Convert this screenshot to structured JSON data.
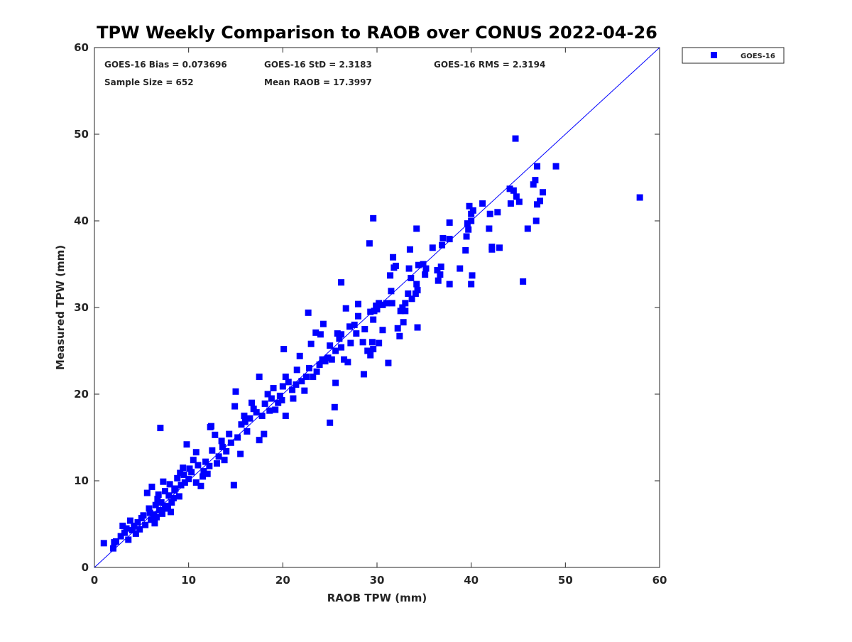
{
  "chart_data": {
    "type": "scatter",
    "title": "TPW Weekly Comparison to RAOB over CONUS 2022-04-26",
    "xlabel": "RAOB TPW (mm)",
    "ylabel": "Measured TPW (mm)",
    "xlim": [
      0,
      60
    ],
    "ylim": [
      0,
      60
    ],
    "xticks": [
      "0",
      "10",
      "20",
      "30",
      "40",
      "50",
      "60"
    ],
    "yticks": [
      "0",
      "10",
      "20",
      "30",
      "40",
      "50",
      "60"
    ],
    "grid": false,
    "legend_position": "outside-top-right",
    "stats": {
      "bias": "GOES-16 Bias = 0.073696",
      "std": "GOES-16 StD = 2.3183",
      "rms": "GOES-16 RMS = 2.3194",
      "sample": "Sample Size = 652",
      "mean": "Mean RAOB = 17.3997"
    },
    "reference_line": {
      "name": "1:1 line",
      "x": [
        0,
        60
      ],
      "y": [
        0,
        60
      ],
      "color": "#0000ff"
    },
    "series": [
      {
        "name": "GOES-16",
        "color": "#0000ff",
        "marker": "square",
        "points": [
          [
            47,
            46.3
          ],
          [
            46.8,
            44.7
          ],
          [
            46.6,
            44.2
          ],
          [
            44.7,
            49.5
          ],
          [
            49,
            46.3
          ],
          [
            47.6,
            43.3
          ],
          [
            47.3,
            42.3
          ],
          [
            47,
            41.9
          ],
          [
            46.9,
            40
          ],
          [
            46,
            39.1
          ],
          [
            45.5,
            33
          ],
          [
            44.1,
            43.7
          ],
          [
            44.5,
            43.5
          ],
          [
            44.8,
            42.8
          ],
          [
            45.1,
            42.2
          ],
          [
            44.2,
            42
          ],
          [
            43,
            36.9
          ],
          [
            42.8,
            41
          ],
          [
            42,
            40.8
          ],
          [
            42.2,
            37
          ],
          [
            41.9,
            39.1
          ],
          [
            42.2,
            36.7
          ],
          [
            41.2,
            42
          ],
          [
            40.2,
            41.2
          ],
          [
            40,
            40.8
          ],
          [
            39.8,
            41.7
          ],
          [
            40,
            40
          ],
          [
            39.6,
            39.7
          ],
          [
            39.7,
            39
          ],
          [
            39.5,
            38.2
          ],
          [
            39.4,
            36.6
          ],
          [
            40.1,
            33.7
          ],
          [
            40,
            32.7
          ],
          [
            38.8,
            34.5
          ],
          [
            37.7,
            39.8
          ],
          [
            37.7,
            37.9
          ],
          [
            37.7,
            32.7
          ],
          [
            37,
            38
          ],
          [
            36.9,
            37.2
          ],
          [
            36.8,
            34.7
          ],
          [
            36.7,
            33.8
          ],
          [
            36.5,
            33.1
          ],
          [
            36.4,
            34.3
          ],
          [
            35.9,
            36.9
          ],
          [
            34.2,
            39.1
          ],
          [
            33.5,
            36.7
          ],
          [
            33.4,
            34.5
          ],
          [
            33.6,
            33.4
          ],
          [
            34.4,
            34.9
          ],
          [
            35.2,
            34.5
          ],
          [
            35.1,
            33.8
          ],
          [
            34.9,
            35
          ],
          [
            34.2,
            32.7
          ],
          [
            34.3,
            32
          ],
          [
            34.1,
            31.6
          ],
          [
            33.7,
            31
          ],
          [
            33.3,
            31.6
          ],
          [
            33,
            30.5
          ],
          [
            32.7,
            30
          ],
          [
            32.5,
            29.6
          ],
          [
            33,
            29.6
          ],
          [
            32.8,
            28.3
          ],
          [
            32.4,
            26.7
          ],
          [
            32.2,
            27.6
          ],
          [
            34.3,
            27.7
          ],
          [
            31.7,
            35.8
          ],
          [
            31.8,
            34.6
          ],
          [
            32,
            34.8
          ],
          [
            31.4,
            33.7
          ],
          [
            31.5,
            31.9
          ],
          [
            31.6,
            30.5
          ],
          [
            31,
            30.5
          ],
          [
            30.6,
            30.3
          ],
          [
            30.2,
            30.5
          ],
          [
            30,
            29.8
          ],
          [
            29.9,
            30.2
          ],
          [
            29.7,
            29.6
          ],
          [
            29.6,
            28.6
          ],
          [
            29.6,
            25.2
          ],
          [
            29.5,
            26
          ],
          [
            29.3,
            24.5
          ],
          [
            29,
            25
          ],
          [
            28.7,
            27.5
          ],
          [
            28.5,
            26
          ],
          [
            28,
            30.4
          ],
          [
            28,
            29
          ],
          [
            27.6,
            28
          ],
          [
            27.8,
            27
          ],
          [
            27.2,
            25.9
          ],
          [
            27.1,
            27.8
          ],
          [
            26.9,
            23.7
          ],
          [
            26.5,
            24
          ],
          [
            26.2,
            25.4
          ],
          [
            26.2,
            32.9
          ],
          [
            26.2,
            26.9
          ],
          [
            26,
            26.4
          ],
          [
            25.8,
            27
          ],
          [
            25.6,
            21.3
          ],
          [
            25.5,
            18.5
          ],
          [
            25,
            16.7
          ],
          [
            25.6,
            25
          ],
          [
            25.2,
            24
          ],
          [
            25,
            25.6
          ],
          [
            24.8,
            24.2
          ],
          [
            24.5,
            23.8
          ],
          [
            24.2,
            24
          ],
          [
            24,
            26.9
          ],
          [
            23.6,
            22.6
          ],
          [
            23.2,
            22
          ],
          [
            23,
            25.8
          ],
          [
            22.8,
            23
          ],
          [
            22.7,
            29.4
          ],
          [
            22.5,
            22
          ],
          [
            22.3,
            20.4
          ],
          [
            22,
            21.5
          ],
          [
            21.8,
            24.4
          ],
          [
            21.5,
            22.8
          ],
          [
            21.1,
            19.5
          ],
          [
            21,
            20.5
          ],
          [
            20.6,
            21.4
          ],
          [
            20.3,
            22
          ],
          [
            20.1,
            25.2
          ],
          [
            20,
            20.9
          ],
          [
            19.7,
            19.8
          ],
          [
            19.5,
            19
          ],
          [
            19.2,
            18.2
          ],
          [
            19,
            20.7
          ],
          [
            18.8,
            19.5
          ],
          [
            18.4,
            20
          ],
          [
            18.1,
            18.9
          ],
          [
            17.8,
            17.5
          ],
          [
            17.5,
            22
          ],
          [
            17.2,
            17.9
          ],
          [
            16.9,
            18.3
          ],
          [
            16.7,
            19
          ],
          [
            16.5,
            17.2
          ],
          [
            16.2,
            15.7
          ],
          [
            15.9,
            17.5
          ],
          [
            15.6,
            16.5
          ],
          [
            15.5,
            13.1
          ],
          [
            15.2,
            15
          ],
          [
            15,
            20.3
          ],
          [
            14.9,
            18.6
          ],
          [
            14.8,
            9.5
          ],
          [
            14.5,
            14.4
          ],
          [
            14.3,
            15.4
          ],
          [
            14,
            13.4
          ],
          [
            13.8,
            12.4
          ],
          [
            13.5,
            14.6
          ],
          [
            13.2,
            12.8
          ],
          [
            13,
            12
          ],
          [
            12.8,
            15.3
          ],
          [
            12.5,
            13.5
          ],
          [
            12.3,
            16.2
          ],
          [
            12.2,
            11.7
          ],
          [
            12,
            10.8
          ],
          [
            11.8,
            12.2
          ],
          [
            11.5,
            10.5
          ],
          [
            11.3,
            9.4
          ],
          [
            11,
            11.8
          ],
          [
            10.8,
            13.3
          ],
          [
            10.5,
            12.4
          ],
          [
            10.3,
            11
          ],
          [
            10,
            10.2
          ],
          [
            9.8,
            14.2
          ],
          [
            9.6,
            9.8
          ],
          [
            9.4,
            11.5
          ],
          [
            9.2,
            9.5
          ],
          [
            9,
            8.2
          ],
          [
            8.8,
            10.3
          ],
          [
            8.6,
            9.1
          ],
          [
            8.4,
            8
          ],
          [
            8.2,
            7.5
          ],
          [
            8,
            9.6
          ],
          [
            7.9,
            8.3
          ],
          [
            7.7,
            7.1
          ],
          [
            7.5,
            6.8
          ],
          [
            7.3,
            9.9
          ],
          [
            7.1,
            7.5
          ],
          [
            7,
            16.1
          ],
          [
            6.9,
            6.6
          ],
          [
            6.8,
            8.4
          ],
          [
            6.6,
            5.8
          ],
          [
            6.5,
            7.2
          ],
          [
            6.3,
            6.1
          ],
          [
            6.1,
            9.3
          ],
          [
            6,
            5.5
          ],
          [
            5.8,
            6.8
          ],
          [
            5.6,
            8.6
          ],
          [
            5.4,
            4.9
          ],
          [
            5.2,
            6
          ],
          [
            5,
            5.7
          ],
          [
            4.8,
            4.4
          ],
          [
            4.6,
            5.2
          ],
          [
            4.4,
            3.9
          ],
          [
            4.2,
            4.8
          ],
          [
            4,
            4.3
          ],
          [
            3.8,
            5.4
          ],
          [
            3.6,
            3.2
          ],
          [
            3.4,
            4.5
          ],
          [
            3.2,
            4
          ],
          [
            3,
            4.8
          ],
          [
            2.8,
            3.6
          ],
          [
            2.3,
            3
          ],
          [
            2,
            2.2
          ],
          [
            1,
            2.8
          ],
          [
            2.1,
            2.9
          ],
          [
            9.5,
            10.7
          ],
          [
            10.8,
            9.8
          ],
          [
            12.4,
            16.3
          ],
          [
            17.5,
            14.7
          ],
          [
            18,
            15.4
          ],
          [
            20.3,
            17.5
          ],
          [
            23.5,
            27.1
          ],
          [
            24.3,
            28.1
          ],
          [
            26.7,
            29.9
          ],
          [
            28.6,
            22.3
          ],
          [
            29.3,
            29.5
          ],
          [
            30.6,
            27.4
          ],
          [
            31.2,
            23.6
          ],
          [
            29.2,
            37.4
          ],
          [
            29.6,
            40.3
          ],
          [
            30.2,
            25.9
          ],
          [
            57.9,
            42.7
          ],
          [
            7.5,
            8.8
          ],
          [
            8.1,
            6.4
          ],
          [
            6.7,
            7.9
          ],
          [
            7.2,
            6.2
          ],
          [
            8.5,
            8.9
          ],
          [
            9.1,
            10.9
          ],
          [
            5.9,
            6.3
          ],
          [
            6.4,
            5.1
          ],
          [
            7.8,
            6.9
          ],
          [
            10.1,
            11.4
          ],
          [
            11.6,
            11.1
          ],
          [
            13.6,
            13.9
          ],
          [
            16,
            16.8
          ],
          [
            18.6,
            18.1
          ],
          [
            19.9,
            19.3
          ],
          [
            21.4,
            21.1
          ],
          [
            23.9,
            23.4
          ]
        ]
      }
    ]
  }
}
